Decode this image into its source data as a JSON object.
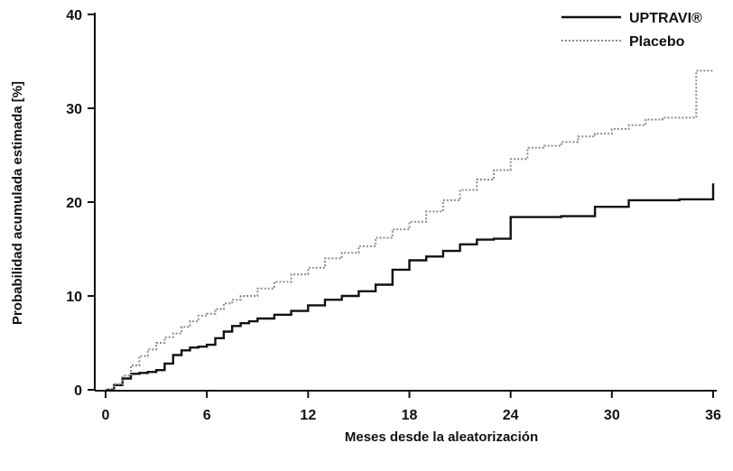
{
  "chart_data": {
    "type": "line",
    "title": "",
    "xlabel": "Meses desde la aleatorización",
    "ylabel": "Probabilidad acumulada estimada [%]",
    "xlim": [
      0,
      36
    ],
    "ylim": [
      0,
      40
    ],
    "xticks": [
      0,
      6,
      12,
      18,
      24,
      30,
      36
    ],
    "yticks": [
      0,
      10,
      20,
      30,
      40
    ],
    "grid": false,
    "legend_position": "top-right",
    "series": [
      {
        "name": "UPTRAVI®",
        "style": "solid",
        "color": "#111111",
        "x": [
          0,
          0.5,
          1,
          1.5,
          2,
          2.5,
          3,
          3.5,
          4,
          4.5,
          5,
          5.5,
          6,
          6.5,
          7,
          7.5,
          8,
          8.5,
          9,
          10,
          11,
          12,
          13,
          14,
          15,
          16,
          17,
          18,
          19,
          20,
          21,
          22,
          23,
          24,
          25,
          26,
          27,
          28,
          29,
          30,
          31,
          32,
          33,
          34,
          35,
          36
        ],
        "y": [
          0,
          0.5,
          1.2,
          1.7,
          1.8,
          1.9,
          2.1,
          2.8,
          3.7,
          4.2,
          4.5,
          4.6,
          4.8,
          5.5,
          6.2,
          6.8,
          7.1,
          7.3,
          7.6,
          8.0,
          8.4,
          9.0,
          9.6,
          10.0,
          10.5,
          11.2,
          12.8,
          13.8,
          14.2,
          14.8,
          15.5,
          16.0,
          16.1,
          18.4,
          18.4,
          18.4,
          18.5,
          18.5,
          19.5,
          19.5,
          20.2,
          20.2,
          20.2,
          20.3,
          20.3,
          22.0
        ]
      },
      {
        "name": "Placebo",
        "style": "dotted",
        "color": "#8a8a8a",
        "x": [
          0,
          0.5,
          1,
          1.5,
          2,
          2.5,
          3,
          3.5,
          4,
          4.5,
          5,
          5.5,
          6,
          6.5,
          7,
          7.5,
          8,
          9,
          10,
          11,
          12,
          13,
          14,
          15,
          16,
          17,
          18,
          19,
          20,
          21,
          22,
          23,
          24,
          25,
          26,
          27,
          28,
          29,
          30,
          31,
          32,
          33,
          34,
          35,
          36
        ],
        "y": [
          0,
          0.6,
          1.5,
          2.6,
          3.6,
          4.3,
          5.0,
          5.6,
          6.0,
          6.7,
          7.3,
          7.9,
          8.1,
          8.6,
          9.2,
          9.6,
          10.0,
          10.8,
          11.5,
          12.3,
          13.0,
          14.0,
          14.6,
          15.3,
          16.2,
          17.1,
          17.9,
          19.0,
          20.2,
          21.3,
          22.4,
          23.4,
          24.6,
          25.8,
          26.0,
          26.4,
          27.0,
          27.3,
          27.8,
          28.2,
          28.8,
          29.0,
          29.0,
          34.0,
          34.0
        ]
      }
    ]
  }
}
